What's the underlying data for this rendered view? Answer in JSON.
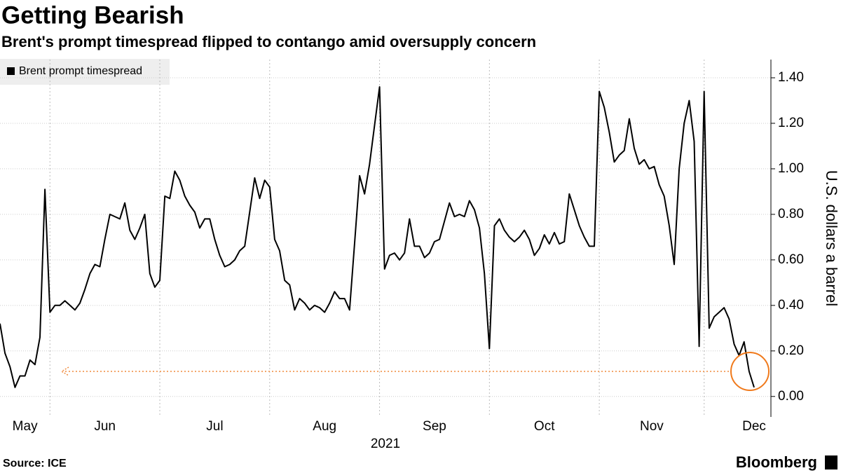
{
  "chart_data": {
    "type": "line",
    "title": "Getting Bearish",
    "subtitle": "Brent's prompt timespread flipped to contango amid oversupply concern",
    "ylabel": "U.S. dollars a barrel",
    "xlabel": "2021",
    "source": "Source: ICE",
    "brand": "Bloomberg",
    "legend": "top-left",
    "grid": true,
    "categories": [
      "May",
      null,
      null,
      null,
      null,
      null,
      null,
      null,
      null,
      null,
      "Jun",
      null,
      null,
      null,
      null,
      null,
      null,
      null,
      null,
      null,
      null,
      null,
      null,
      null,
      null,
      null,
      null,
      null,
      null,
      null,
      null,
      null,
      "Jul",
      null,
      null,
      null,
      null,
      null,
      null,
      null,
      null,
      null,
      null,
      null,
      null,
      null,
      null,
      null,
      null,
      null,
      null,
      null,
      null,
      null,
      "Aug",
      null,
      null,
      null,
      null,
      null,
      null,
      null,
      null,
      null,
      null,
      null,
      null,
      null,
      null,
      null,
      null,
      null,
      null,
      null,
      null,
      null,
      "Sep",
      null,
      null,
      null,
      null,
      null,
      null,
      null,
      null,
      null,
      null,
      null,
      null,
      null,
      null,
      null,
      null,
      null,
      null,
      null,
      null,
      null,
      "Oct",
      null,
      null,
      null,
      null,
      null,
      null,
      null,
      null,
      null,
      null,
      null,
      null,
      null,
      null,
      null,
      null,
      null,
      null,
      null,
      null,
      null,
      "Nov",
      null,
      null,
      null,
      null,
      null,
      null,
      null,
      null,
      null,
      null,
      null,
      null,
      null,
      null,
      null,
      null,
      null,
      null,
      null,
      null,
      "Dec",
      null,
      null,
      null,
      null,
      null,
      null,
      null,
      null,
      null,
      null
    ],
    "series": [
      {
        "name": "Brent prompt timespread",
        "color": "#000000",
        "values": [
          0.32,
          0.19,
          0.13,
          0.04,
          0.09,
          0.09,
          0.16,
          0.14,
          0.26,
          0.91,
          0.37,
          0.4,
          0.4,
          0.42,
          0.4,
          0.38,
          0.41,
          0.47,
          0.54,
          0.58,
          0.57,
          0.69,
          0.8,
          0.79,
          0.78,
          0.85,
          0.73,
          0.69,
          0.74,
          0.8,
          0.54,
          0.48,
          0.51,
          0.88,
          0.87,
          0.99,
          0.95,
          0.88,
          0.84,
          0.81,
          0.74,
          0.78,
          0.78,
          0.69,
          0.62,
          0.57,
          0.58,
          0.6,
          0.64,
          0.66,
          0.81,
          0.96,
          0.87,
          0.95,
          0.92,
          0.69,
          0.64,
          0.51,
          0.49,
          0.38,
          0.43,
          0.41,
          0.38,
          0.4,
          0.39,
          0.37,
          0.41,
          0.46,
          0.43,
          0.43,
          0.38,
          0.67,
          0.97,
          0.89,
          1.02,
          1.19,
          1.36,
          0.56,
          0.62,
          0.63,
          0.6,
          0.63,
          0.78,
          0.66,
          0.66,
          0.61,
          0.63,
          0.68,
          0.69,
          0.77,
          0.85,
          0.79,
          0.8,
          0.79,
          0.86,
          0.82,
          0.74,
          0.54,
          0.21,
          0.75,
          0.78,
          0.73,
          0.7,
          0.68,
          0.7,
          0.73,
          0.69,
          0.62,
          0.65,
          0.71,
          0.67,
          0.72,
          0.67,
          0.68,
          0.89,
          0.82,
          0.75,
          0.7,
          0.66,
          0.66,
          1.34,
          1.27,
          1.16,
          1.03,
          1.06,
          1.08,
          1.22,
          1.09,
          1.02,
          1.04,
          1.0,
          1.01,
          0.93,
          0.88,
          0.75,
          0.58,
          1.0,
          1.2,
          1.3,
          1.12,
          0.22,
          1.34,
          0.3,
          0.35,
          0.37,
          0.39,
          0.34,
          0.23,
          0.18,
          0.24,
          0.11,
          0.04
        ]
      }
    ],
    "ylim": [
      -0.09,
      1.48
    ],
    "yticks": [
      {
        "value": 0,
        "label": "0.00"
      },
      {
        "value": 0.2,
        "label": "0.20"
      },
      {
        "value": 0.4,
        "label": "0.40"
      },
      {
        "value": 0.6,
        "label": "0.60"
      },
      {
        "value": 0.8,
        "label": "0.80"
      },
      {
        "value": 1.0,
        "label": "1.00"
      },
      {
        "value": 1.2,
        "label": "1.20"
      },
      {
        "value": 1.4,
        "label": "1.40"
      }
    ]
  }
}
